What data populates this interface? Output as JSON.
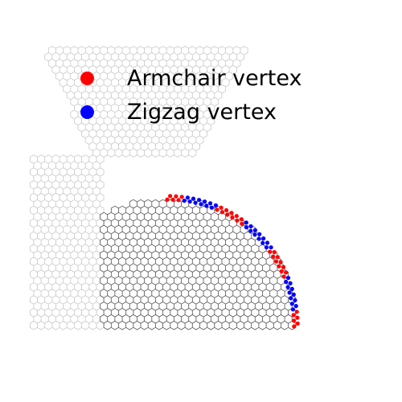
{
  "legend": {
    "items": [
      {
        "label": "Armchair vertex",
        "color": "#ff0000"
      },
      {
        "label": "Zigzag vertex",
        "color": "#0000ff"
      }
    ]
  },
  "colors": {
    "background": "#ffffff",
    "lattice_outer": "#c8c8c8",
    "lattice_inner": "#555555"
  }
}
